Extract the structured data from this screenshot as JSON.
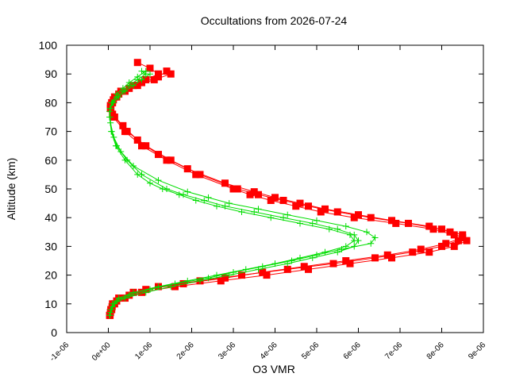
{
  "chart_data": {
    "type": "scatter",
    "title": "Occultations from 2026-07-24",
    "xlabel": "O3 VMR",
    "ylabel": "Altitude (km)",
    "xlim": [
      -1e-06,
      9e-06
    ],
    "ylim": [
      0,
      100
    ],
    "x_ticks": [
      {
        "value": -1e-06,
        "label": "-1e-06"
      },
      {
        "value": 0,
        "label": "0e+00"
      },
      {
        "value": 1e-06,
        "label": "1e-06"
      },
      {
        "value": 2e-06,
        "label": "2e-06"
      },
      {
        "value": 3e-06,
        "label": "3e-06"
      },
      {
        "value": 4e-06,
        "label": "4e-06"
      },
      {
        "value": 5e-06,
        "label": "5e-06"
      },
      {
        "value": 6e-06,
        "label": "6e-06"
      },
      {
        "value": 7e-06,
        "label": "7e-06"
      },
      {
        "value": 8e-06,
        "label": "8e-06"
      },
      {
        "value": 9e-06,
        "label": "9e-06"
      }
    ],
    "y_ticks": [
      {
        "value": 0,
        "label": "0"
      },
      {
        "value": 10,
        "label": "10"
      },
      {
        "value": 20,
        "label": "20"
      },
      {
        "value": 30,
        "label": "30"
      },
      {
        "value": 40,
        "label": "40"
      },
      {
        "value": 50,
        "label": "50"
      },
      {
        "value": 60,
        "label": "60"
      },
      {
        "value": 70,
        "label": "70"
      },
      {
        "value": 80,
        "label": "80"
      },
      {
        "value": 90,
        "label": "90"
      },
      {
        "value": 100,
        "label": "100"
      }
    ],
    "grid": false,
    "legend": false,
    "series": [
      {
        "color": "#ff0000",
        "marker": "square",
        "profiles": [
          {
            "altitude": [
              6,
              8,
              10,
              12,
              14,
              16,
              18,
              20,
              22,
              24,
              26,
              28,
              30,
              32,
              34,
              36,
              38,
              40,
              42,
              44,
              46,
              48,
              50,
              55,
              60,
              65,
              70,
              75,
              78,
              80,
              82,
              84,
              86,
              88,
              90,
              92,
              94
            ],
            "vmr": [
              3e-08,
              6e-08,
              1e-07,
              2.5e-07,
              6e-07,
              1.2e-06,
              2.2e-06,
              3.2e-06,
              4.3e-06,
              5.4e-06,
              6.4e-06,
              7.3e-06,
              8e-06,
              8.4e-06,
              8.3e-06,
              7.8e-06,
              6.9e-06,
              5.9e-06,
              5.1e-06,
              4.5e-06,
              3.9e-06,
              3.4e-06,
              3e-06,
              2.1e-06,
              1.4e-06,
              8e-07,
              4e-07,
              1.2e-07,
              5e-08,
              8e-08,
              1.5e-07,
              3e-07,
              6e-07,
              9e-07,
              1.2e-06,
              1e-06,
              7e-07
            ]
          },
          {
            "altitude": [
              6,
              8,
              10,
              12,
              14,
              16,
              18,
              20,
              22,
              24,
              26,
              28,
              30,
              32,
              34,
              36,
              38,
              40,
              42,
              44,
              46,
              48,
              50,
              55,
              60,
              65,
              70,
              75,
              78,
              80,
              82,
              84,
              86,
              88,
              90
            ],
            "vmr": [
              4e-08,
              8e-08,
              1.5e-07,
              4e-07,
              8e-07,
              1.6e-06,
              2.7e-06,
              3.8e-06,
              4.8e-06,
              5.8e-06,
              6.8e-06,
              7.7e-06,
              8.3e-06,
              8.6e-06,
              8.5e-06,
              8e-06,
              7.2e-06,
              6.3e-06,
              5.5e-06,
              4.8e-06,
              4.2e-06,
              3.6e-06,
              3.1e-06,
              2.2e-06,
              1.5e-06,
              9e-07,
              4.5e-07,
              1.5e-07,
              6e-08,
              1e-07,
              2e-07,
              4e-07,
              7e-07,
              1.1e-06,
              1.5e-06
            ]
          },
          {
            "altitude": [
              7,
              9,
              11,
              13,
              15,
              17,
              19,
              21,
              23,
              25,
              27,
              29,
              31,
              33,
              35,
              37,
              39,
              41,
              43,
              45,
              47,
              49,
              52,
              57,
              62,
              67,
              72,
              76,
              79,
              81,
              83,
              85,
              87,
              89,
              91
            ],
            "vmr": [
              5e-08,
              9e-08,
              2e-07,
              5e-07,
              9e-07,
              1.8e-06,
              2.8e-06,
              3.7e-06,
              4.7e-06,
              5.7e-06,
              6.7e-06,
              7.5e-06,
              8.1e-06,
              8.5e-06,
              8.2e-06,
              7.7e-06,
              6.8e-06,
              6e-06,
              5.2e-06,
              4.6e-06,
              4e-06,
              3.5e-06,
              2.8e-06,
              1.9e-06,
              1.2e-06,
              7e-07,
              3.5e-07,
              1e-07,
              5e-08,
              1.2e-07,
              2.5e-07,
              5e-07,
              8e-07,
              1.2e-06,
              1.4e-06
            ]
          }
        ]
      },
      {
        "color": "#00dd00",
        "marker": "plus",
        "profiles": [
          {
            "altitude": [
              6,
              8,
              10,
              12,
              14,
              16,
              18,
              20,
              22,
              24,
              26,
              28,
              30,
              32,
              34,
              36,
              38,
              40,
              42,
              44,
              46,
              48,
              50,
              52,
              55,
              60,
              65,
              70,
              75,
              78,
              80,
              82,
              84,
              86,
              88,
              90,
              91
            ],
            "vmr": [
              3e-08,
              6e-08,
              1e-07,
              2.5e-07,
              6e-07,
              1.2e-06,
              1.9e-06,
              2.6e-06,
              3.3e-06,
              4e-06,
              4.6e-06,
              5.2e-06,
              5.7e-06,
              5.9e-06,
              5.8e-06,
              5.3e-06,
              4.6e-06,
              3.9e-06,
              3.2e-06,
              2.6e-06,
              2.1e-06,
              1.7e-06,
              1.3e-06,
              1e-06,
              7e-07,
              4e-07,
              1.8e-07,
              7e-08,
              3e-08,
              4e-08,
              1e-07,
              2e-07,
              3.5e-07,
              5e-07,
              7e-07,
              9e-07,
              8e-07
            ]
          },
          {
            "altitude": [
              6,
              8,
              10,
              12,
              14,
              16,
              18,
              20,
              22,
              24,
              26,
              28,
              30,
              32,
              34,
              36,
              38,
              40,
              42,
              44,
              46,
              48,
              50,
              55,
              60,
              65,
              70,
              75,
              78,
              80,
              82,
              84,
              86,
              88,
              90
            ],
            "vmr": [
              4e-08,
              8e-08,
              1.5e-07,
              4e-07,
              9e-07,
              1.5e-06,
              2.2e-06,
              2.9e-06,
              3.6e-06,
              4.3e-06,
              4.9e-06,
              5.5e-06,
              5.9e-06,
              6e-06,
              5.9e-06,
              5.5e-06,
              4.9e-06,
              4.2e-06,
              3.5e-06,
              2.8e-06,
              2.3e-06,
              1.8e-06,
              1.4e-06,
              8e-07,
              4.5e-07,
              2e-07,
              8e-08,
              4e-08,
              5e-08,
              1.2e-07,
              2.5e-07,
              4e-07,
              6e-07,
              8e-07,
              1e-06
            ]
          },
          {
            "altitude": [
              7,
              9,
              11,
              13,
              15,
              17,
              19,
              21,
              23,
              25,
              27,
              29,
              31,
              33,
              35,
              37,
              39,
              41,
              43,
              45,
              47,
              49,
              53,
              58,
              63,
              68,
              73,
              77,
              80,
              83,
              85,
              87,
              89,
              91
            ],
            "vmr": [
              5e-08,
              1e-07,
              2e-07,
              5e-07,
              1e-06,
              1.6e-06,
              2.4e-06,
              3e-06,
              3.7e-06,
              4.4e-06,
              5e-06,
              5.6e-06,
              6.3e-06,
              6.4e-06,
              6.2e-06,
              5.7e-06,
              5e-06,
              4.3e-06,
              3.6e-06,
              2.9e-06,
              2.4e-06,
              1.9e-06,
              1.2e-06,
              6e-07,
              3e-07,
              1.3e-07,
              5e-08,
              3e-08,
              8e-08,
              2e-07,
              3.5e-07,
              5e-07,
              7e-07,
              9e-07
            ]
          }
        ]
      }
    ]
  }
}
